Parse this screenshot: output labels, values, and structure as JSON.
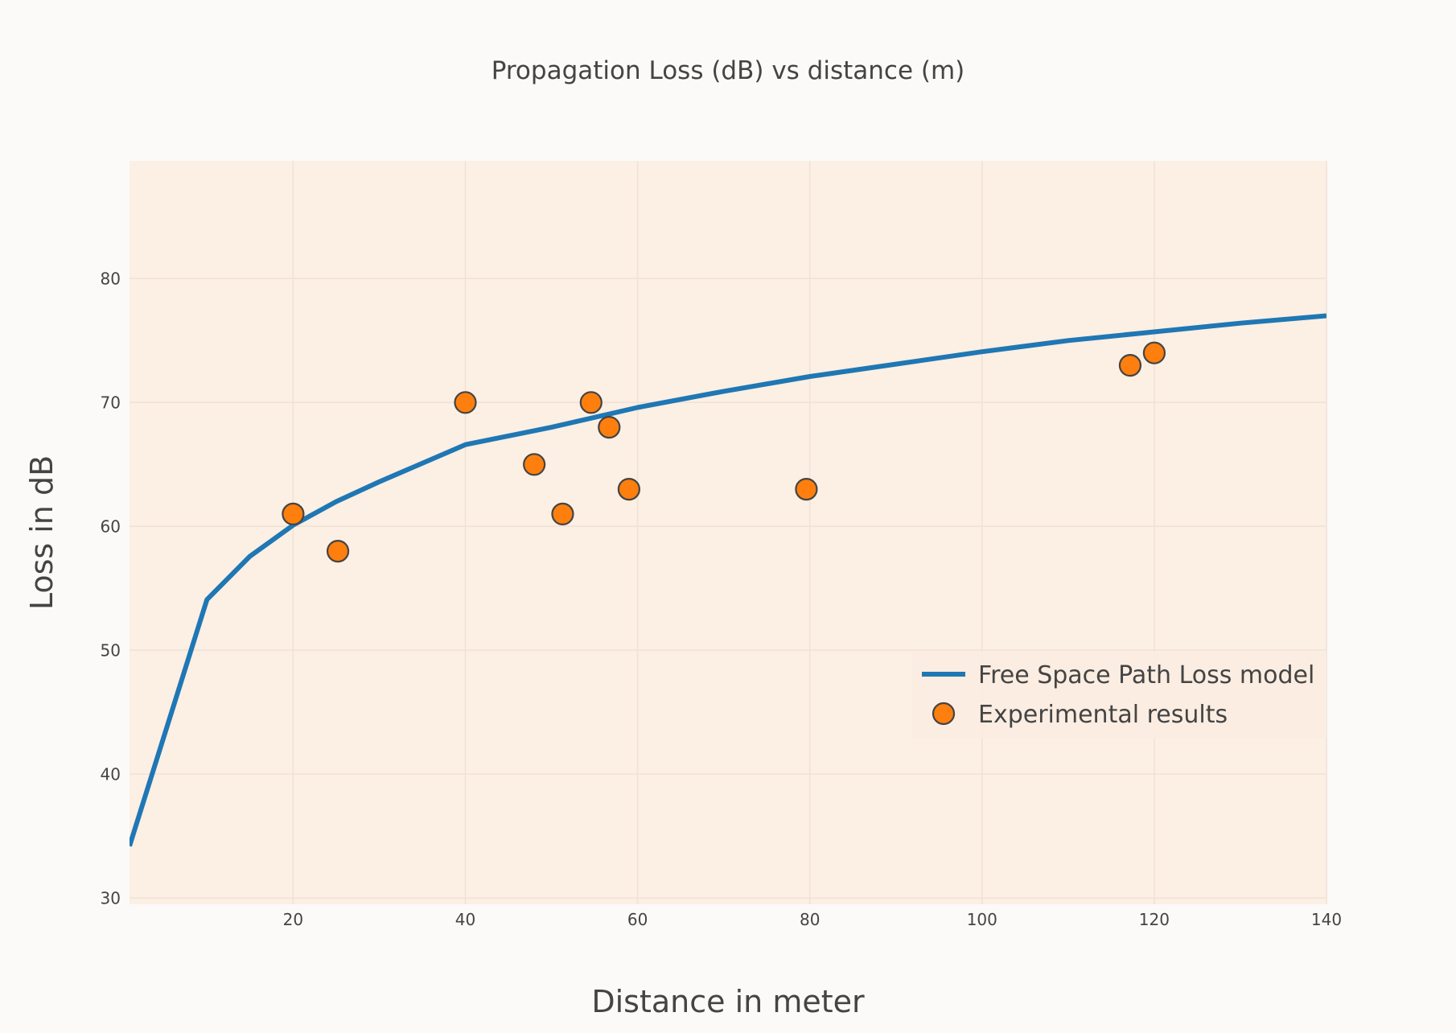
{
  "chart_data": {
    "type": "line",
    "title": "Propagation Loss (dB) vs distance (m)",
    "xlabel": "Distance in meter",
    "ylabel": "Loss in dB",
    "xlim": [
      1,
      140
    ],
    "ylim": [
      29.5,
      89.5
    ],
    "xticks": [
      20,
      40,
      60,
      80,
      100,
      120,
      140
    ],
    "yticks": [
      30,
      40,
      50,
      60,
      70,
      80
    ],
    "grid": true,
    "legend_position": "bottom-right",
    "background": "#fcefe3",
    "paper_background": "#fbfaf8",
    "series": [
      {
        "name": "Free Space Path Loss model",
        "kind": "line",
        "color": "#1f77b4",
        "x": [
          1,
          10,
          15,
          20,
          25,
          30,
          40,
          50,
          60,
          70,
          80,
          90,
          100,
          110,
          120,
          130,
          140
        ],
        "y": [
          34.2,
          54.1,
          57.6,
          60.1,
          62.0,
          63.6,
          66.6,
          68.0,
          69.6,
          70.9,
          72.1,
          73.1,
          74.1,
          75.0,
          75.7,
          76.4,
          77.0
        ]
      },
      {
        "name": "Experimental results",
        "kind": "scatter",
        "color": "#ff7f0e",
        "x": [
          20,
          25.2,
          40,
          48,
          51.3,
          54.6,
          56.7,
          59,
          79.6,
          117.2,
          120
        ],
        "y": [
          61,
          58,
          70,
          65,
          61,
          70,
          68,
          63,
          63,
          73,
          74
        ]
      }
    ]
  }
}
